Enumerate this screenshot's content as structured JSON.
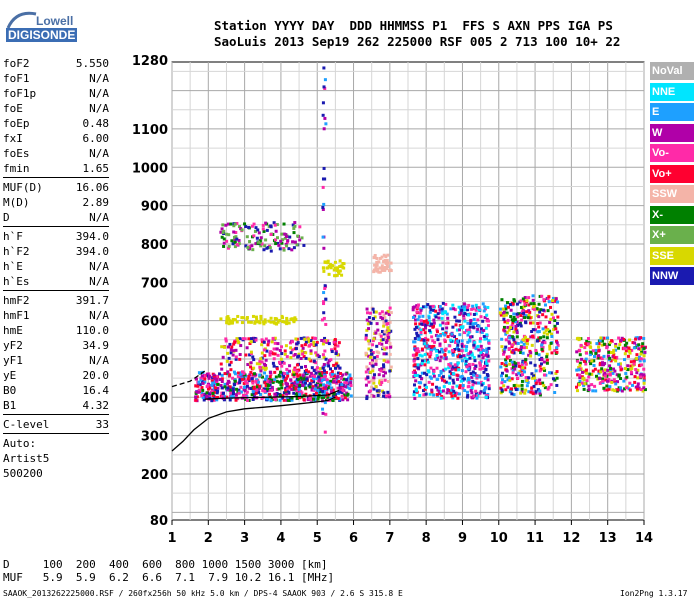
{
  "logo": {
    "line1": "Lowell",
    "line2": "DIGISONDE"
  },
  "header": {
    "line1": "Station YYYY DAY  DDD HHMMSS P1  FFS S AXN PPS IGA PS",
    "line2": "SaoLuis 2013 Sep19 262 225000 RSF 005 2 713 100 10+ 22"
  },
  "params": {
    "group1": [
      {
        "k": "foF2",
        "v": "5.550"
      },
      {
        "k": "foF1",
        "v": "N/A"
      },
      {
        "k": "foF1p",
        "v": "N/A"
      },
      {
        "k": "foE",
        "v": "N/A"
      },
      {
        "k": "foEp",
        "v": "0.48"
      },
      {
        "k": "fxI",
        "v": "6.00"
      },
      {
        "k": "foEs",
        "v": "N/A"
      },
      {
        "k": "fmin",
        "v": "1.65"
      }
    ],
    "group2": [
      {
        "k": "MUF(D)",
        "v": "16.06"
      },
      {
        "k": "M(D)",
        "v": "2.89"
      },
      {
        "k": "D",
        "v": "N/A"
      }
    ],
    "group3": [
      {
        "k": "h`F",
        "v": "394.0"
      },
      {
        "k": "h`F2",
        "v": "394.0"
      },
      {
        "k": "h`E",
        "v": "N/A"
      },
      {
        "k": "h`Es",
        "v": "N/A"
      }
    ],
    "group4": [
      {
        "k": "hmF2",
        "v": "391.7"
      },
      {
        "k": "hmF1",
        "v": "N/A"
      },
      {
        "k": "hmE",
        "v": "110.0"
      },
      {
        "k": "yF2",
        "v": "34.9"
      },
      {
        "k": "yF1",
        "v": "N/A"
      },
      {
        "k": "yE",
        "v": "20.0"
      },
      {
        "k": "B0",
        "v": "16.4"
      },
      {
        "k": "B1",
        "v": "4.32"
      }
    ],
    "group5": [
      {
        "k": "C-level",
        "v": "33"
      }
    ],
    "auto_lines": [
      "Auto:",
      "Artist5",
      "500200"
    ]
  },
  "legend": [
    {
      "label": "NoVal",
      "color": "#b0b0b0"
    },
    {
      "label": "NNE",
      "color": "#00e5ff"
    },
    {
      "label": "E",
      "color": "#1ea0ff"
    },
    {
      "label": "W",
      "color": "#b000a8"
    },
    {
      "label": "Vo-",
      "color": "#ff2aa8"
    },
    {
      "label": "Vo+",
      "color": "#ff0030"
    },
    {
      "label": "SSW",
      "color": "#f4b4a8"
    },
    {
      "label": "X-",
      "color": "#008000"
    },
    {
      "label": "X+",
      "color": "#6ab04c"
    },
    {
      "label": "SSE",
      "color": "#d8d800"
    },
    {
      "label": "NNW",
      "color": "#1a1ab0"
    }
  ],
  "bottom": {
    "line1": "D     100  200  400  600  800 1000 1500 3000 [km]",
    "line2": "MUF   5.9  5.9  6.2  6.6  7.1  7.9 10.2 16.1 [MHz]",
    "footer": "SAAOK_2013262225000.RSF / 260fx256h 50 kHz 5.0 km / DPS-4 SAAOK 903 / 2.6 S 315.8 E",
    "version": "Ion2Png 1.3.17"
  },
  "chart_data": {
    "type": "scatter",
    "xlabel": "",
    "ylabel": "",
    "xlim": [
      1,
      14
    ],
    "ylim": [
      80,
      1280
    ],
    "x_ticks": [
      1,
      2,
      3,
      4,
      5,
      6,
      7,
      8,
      9,
      10,
      11,
      12,
      13,
      14
    ],
    "y_ticks": [
      80,
      200,
      300,
      400,
      500,
      600,
      700,
      800,
      900,
      1000,
      1100,
      1280
    ],
    "grid": true,
    "trace_scaled_profile": [
      [
        1.0,
        260
      ],
      [
        1.3,
        285
      ],
      [
        1.6,
        315
      ],
      [
        2.0,
        345
      ],
      [
        2.5,
        362
      ],
      [
        3.0,
        370
      ],
      [
        3.5,
        374
      ],
      [
        4.0,
        378
      ],
      [
        4.5,
        383
      ],
      [
        5.0,
        388
      ],
      [
        5.3,
        392
      ],
      [
        5.5,
        400
      ]
    ],
    "trace_dashed": [
      [
        1.0,
        428
      ],
      [
        1.5,
        442
      ],
      [
        1.9,
        468
      ]
    ],
    "trace_upper": [
      [
        1.9,
        395
      ],
      [
        2.5,
        398
      ],
      [
        3.5,
        400
      ],
      [
        4.5,
        402
      ],
      [
        5.3,
        406
      ],
      [
        5.6,
        418
      ]
    ],
    "echo_clusters": [
      {
        "x": [
          1.6,
          5.9
        ],
        "y": [
          395,
          470
        ],
        "n": 700,
        "colors": [
          "#ff2aa8",
          "#ff0030",
          "#b000a8",
          "#008000",
          "#1ea0ff",
          "#1a1ab0"
        ]
      },
      {
        "x": [
          2.3,
          5.6
        ],
        "y": [
          470,
          560
        ],
        "n": 260,
        "colors": [
          "#ff2aa8",
          "#b000a8",
          "#1a1ab0",
          "#ff0030",
          "#d8d800"
        ]
      },
      {
        "x": [
          2.3,
          4.6
        ],
        "y": [
          785,
          860
        ],
        "n": 140,
        "colors": [
          "#b000a8",
          "#1a1ab0",
          "#008000",
          "#ff2aa8",
          "#6ab04c"
        ]
      },
      {
        "x": [
          2.3,
          4.4
        ],
        "y": [
          595,
          615
        ],
        "n": 70,
        "colors": [
          "#d8d800"
        ]
      },
      {
        "x": [
          5.1,
          5.7
        ],
        "y": [
          720,
          760
        ],
        "n": 40,
        "colors": [
          "#d8d800"
        ]
      },
      {
        "x": [
          5.1,
          5.2
        ],
        "y": [
          300,
          1280
        ],
        "n": 50,
        "colors": [
          "#1a1ab0",
          "#b000a8",
          "#ff2aa8",
          "#1ea0ff"
        ]
      },
      {
        "x": [
          6.5,
          7.0
        ],
        "y": [
          730,
          775
        ],
        "n": 45,
        "colors": [
          "#f4b4a8"
        ]
      },
      {
        "x": [
          6.3,
          7.0
        ],
        "y": [
          400,
          640
        ],
        "n": 180,
        "colors": [
          "#b000a8",
          "#ff2aa8",
          "#1a1ab0",
          "#d8d800",
          "#f4b4a8"
        ]
      },
      {
        "x": [
          7.6,
          8.9
        ],
        "y": [
          400,
          650
        ],
        "n": 380,
        "colors": [
          "#1a1ab0",
          "#1ea0ff",
          "#ff2aa8",
          "#b000a8",
          "#00e5ff",
          "#ff0030"
        ]
      },
      {
        "x": [
          8.9,
          9.7
        ],
        "y": [
          400,
          650
        ],
        "n": 260,
        "colors": [
          "#1ea0ff",
          "#1a1ab0",
          "#b000a8",
          "#00e5ff",
          "#ff2aa8"
        ]
      },
      {
        "x": [
          10.0,
          11.6
        ],
        "y": [
          410,
          670
        ],
        "n": 420,
        "colors": [
          "#b000a8",
          "#ff2aa8",
          "#ff0030",
          "#1ea0ff",
          "#008000",
          "#d8d800",
          "#1a1ab0"
        ]
      },
      {
        "x": [
          12.1,
          14.0
        ],
        "y": [
          420,
          560
        ],
        "n": 340,
        "colors": [
          "#ff2aa8",
          "#d8d800",
          "#b000a8",
          "#1ea0ff",
          "#ff0030",
          "#008000"
        ]
      }
    ]
  }
}
